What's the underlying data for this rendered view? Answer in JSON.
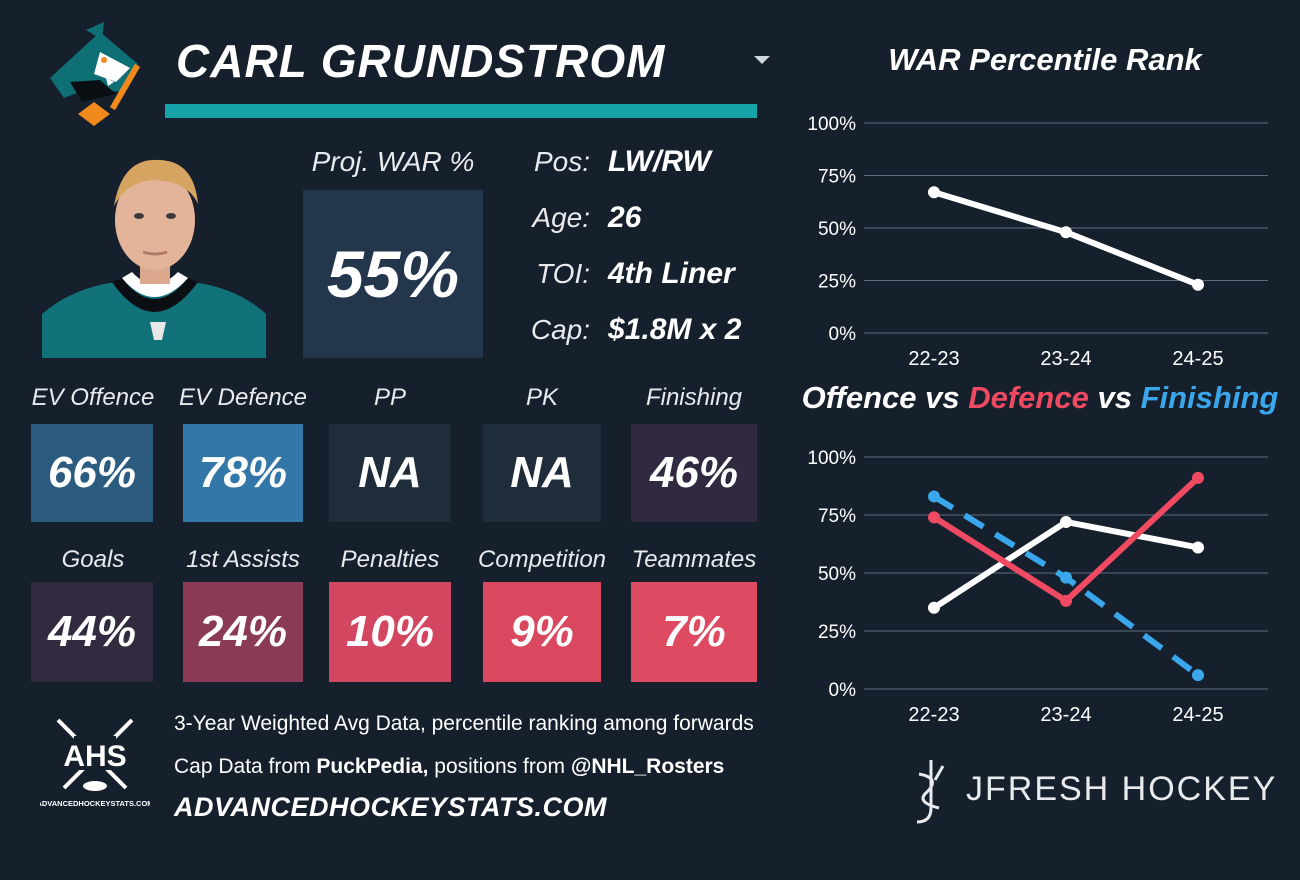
{
  "header": {
    "player_name": "CARL GRUNDSTROM",
    "team_logo_icon": "san-jose-sharks-logo-icon"
  },
  "projected": {
    "label": "Proj. WAR %",
    "value": "55%"
  },
  "info": [
    {
      "label": "Pos:",
      "value": "LW/RW"
    },
    {
      "label": "Age:",
      "value": "26"
    },
    {
      "label": "TOI:",
      "value": "4th Liner"
    },
    {
      "label": "Cap:",
      "value": "$1.8M x 2"
    }
  ],
  "stats_row1": [
    {
      "label": "EV Offence",
      "value": "66%",
      "color": "#2c5b80"
    },
    {
      "label": "EV Defence",
      "value": "78%",
      "color": "#3277a8"
    },
    {
      "label": "PP",
      "value": "NA",
      "color": "#1f2c3a"
    },
    {
      "label": "PK",
      "value": "NA",
      "color": "#1f2c3a"
    },
    {
      "label": "Finishing",
      "value": "46%",
      "color": "#30293f"
    }
  ],
  "stats_row2": [
    {
      "label": "Goals",
      "value": "44%",
      "color": "#322b40"
    },
    {
      "label": "1st Assists",
      "value": "24%",
      "color": "#8a3a55"
    },
    {
      "label": "Penalties",
      "value": "10%",
      "color": "#d2475f"
    },
    {
      "label": "Competition",
      "value": "9%",
      "color": "#d9485f"
    },
    {
      "label": "Teammates",
      "value": "7%",
      "color": "#dd4a61"
    }
  ],
  "footer": {
    "line1": "3-Year Weighted Avg Data, percentile ranking among forwards",
    "line2_prefix": "Cap Data from ",
    "line2_source1": "PuckPedia,",
    "line2_middle": " positions from ",
    "line2_source2": "@NHL_Rosters",
    "url": "ADVANCEDHOCKEYSTATS.COM",
    "ahs_logo_text": "AHS",
    "ahs_logo_subtext": "ADVANCEDHOCKEYSTATS.COM",
    "brand": "JFRESH HOCKEY"
  },
  "chart_data": [
    {
      "type": "line",
      "title": "WAR Percentile Rank",
      "x": [
        "22-23",
        "23-24",
        "24-25"
      ],
      "yticks": [
        "0%",
        "25%",
        "50%",
        "75%",
        "100%"
      ],
      "ylim": [
        0,
        100
      ],
      "grid": true,
      "series": [
        {
          "values": [
            67,
            48,
            23
          ],
          "color": "#ffffff",
          "dashed": false
        }
      ]
    },
    {
      "type": "line",
      "title_parts": [
        {
          "text": "Offence",
          "color": "#ffffff"
        },
        {
          "text": " vs ",
          "color": "#ffffff"
        },
        {
          "text": "Defence",
          "color": "#f04a63"
        },
        {
          "text": " vs ",
          "color": "#ffffff"
        },
        {
          "text": "Finishing",
          "color": "#3aa6ec"
        }
      ],
      "x": [
        "22-23",
        "23-24",
        "24-25"
      ],
      "yticks": [
        "0%",
        "25%",
        "50%",
        "75%",
        "100%"
      ],
      "ylim": [
        0,
        100
      ],
      "grid": true,
      "series": [
        {
          "name": "Offence",
          "values": [
            35,
            72,
            61
          ],
          "color": "#ffffff",
          "dashed": false
        },
        {
          "name": "Defence",
          "values": [
            74,
            38,
            91
          ],
          "color": "#f04a63",
          "dashed": false
        },
        {
          "name": "Finishing",
          "values": [
            83,
            48,
            6
          ],
          "color": "#3aa6ec",
          "dashed": true
        }
      ]
    }
  ]
}
